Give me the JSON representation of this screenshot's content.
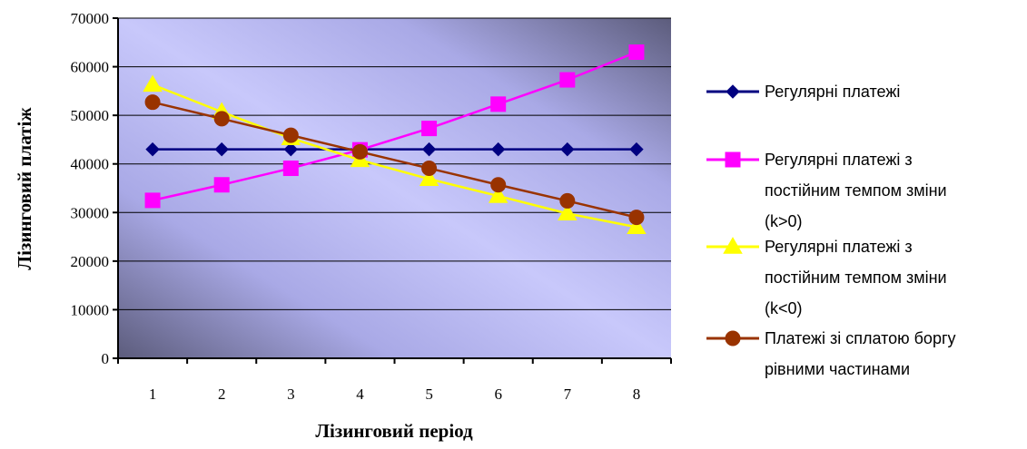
{
  "chart_data": {
    "type": "line",
    "title": "",
    "xlabel": "Лізинговий період",
    "ylabel": "Лізинговий платіж",
    "categories": [
      "1",
      "2",
      "3",
      "4",
      "5",
      "6",
      "7",
      "8"
    ],
    "ylim": [
      0,
      70000
    ],
    "yticks": [
      "0",
      "10000",
      "20000",
      "30000",
      "40000",
      "50000",
      "60000",
      "70000"
    ],
    "grid": true,
    "legend_position": "right",
    "series": [
      {
        "name": "Регулярні платежі",
        "name_lines": [
          "Регулярні платежі"
        ],
        "color": "#000080",
        "marker": "diamond",
        "values": [
          43000,
          43000,
          43000,
          43000,
          43000,
          43000,
          43000,
          43000
        ]
      },
      {
        "name": "Регулярні платежі з постійним темпом зміни (k>0)",
        "name_lines": [
          "Регулярні платежі з",
          "постійним темпом зміни",
          "(k>0)"
        ],
        "color": "#FF00FF",
        "marker": "square",
        "values": [
          32500,
          35700,
          39100,
          42900,
          47300,
          52300,
          57300,
          63000
        ]
      },
      {
        "name": "Регулярні платежі з постійним темпом зміни (k<0)",
        "name_lines": [
          "Регулярні платежі з",
          "постійним темпом зміни",
          "(k<0)"
        ],
        "color": "#FFFF00",
        "marker": "triangle",
        "values": [
          56300,
          50700,
          45300,
          40800,
          36900,
          33400,
          29800,
          27000
        ]
      },
      {
        "name": "Платежі зі сплатою боргу рівними частинами",
        "name_lines": [
          "Платежі зі сплатою боргу",
          "рівними частинами"
        ],
        "color": "#993300",
        "marker": "circle",
        "values": [
          52700,
          49300,
          45900,
          42500,
          39100,
          35700,
          32400,
          29000
        ]
      }
    ]
  }
}
